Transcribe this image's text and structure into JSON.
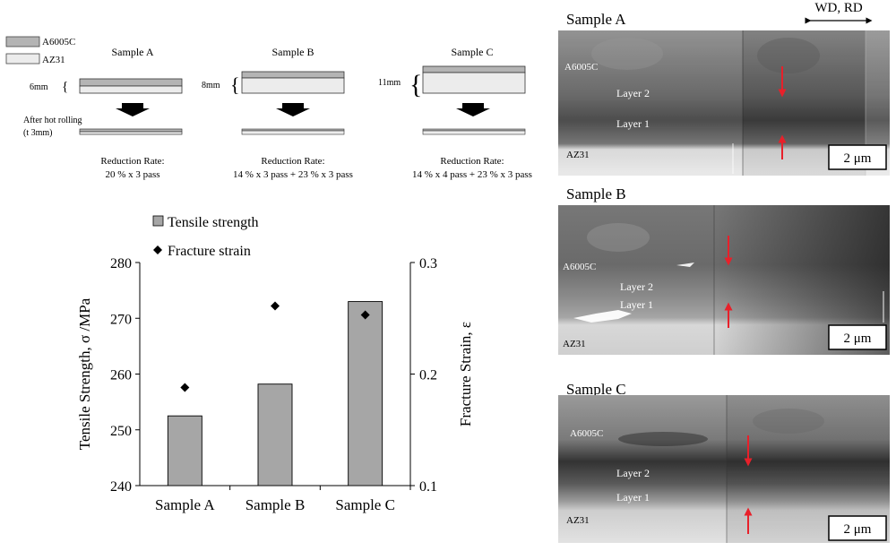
{
  "schematic": {
    "legend": {
      "top_material": "A6005C",
      "bottom_material": "AZ31",
      "top_color": "#b4b4b4",
      "bottom_color": "#ececec"
    },
    "samples": [
      {
        "name": "Sample A",
        "thickness": "6mm",
        "reduction_line1": "Reduction Rate:",
        "reduction_line2": "20 % x 3 pass"
      },
      {
        "name": "Sample B",
        "thickness": "8mm",
        "reduction_line1": "Reduction Rate:",
        "reduction_line2": "14 % x 3 pass + 23 % x 3 pass"
      },
      {
        "name": "Sample C",
        "thickness": "11mm",
        "reduction_line1": "Reduction Rate:",
        "reduction_line2": "14 % x 4 pass + 23 % x 3 pass"
      }
    ],
    "after_label": "After hot rolling",
    "after_thickness": "(t 3mm)"
  },
  "chart_data": {
    "type": "bar",
    "categories": [
      "Sample A",
      "Sample B",
      "Sample C"
    ],
    "series": [
      {
        "name": "Tensile strength",
        "kind": "bar",
        "axis": "left",
        "values": [
          252.5,
          258.2,
          273.0
        ],
        "color": "#a6a6a6"
      },
      {
        "name": "Fracture strain",
        "kind": "scatter",
        "axis": "right",
        "values": [
          0.188,
          0.261,
          0.253
        ],
        "color": "#000000"
      }
    ],
    "ylabel": "Tensile Strength, σ /MPa",
    "y2label": "Fracture Strain, ε",
    "xlabel": "",
    "ylim": [
      240,
      280
    ],
    "y2lim": [
      0.1,
      0.3
    ],
    "yticks": [
      "240",
      "250",
      "260",
      "270",
      "280"
    ],
    "y2ticks": [
      "0.1",
      "0.2",
      "0.3"
    ],
    "legend_position": "top-left",
    "grid": false
  },
  "micrographs": {
    "direction_label": "WD, RD",
    "panels": [
      {
        "title": "Sample A",
        "labels": [
          "A6005C",
          "Layer 2",
          "Layer 1",
          "AZ31"
        ],
        "scale": "2 μm"
      },
      {
        "title": "Sample B",
        "labels": [
          "A6005C",
          "Layer 2",
          "Layer 1",
          "AZ31"
        ],
        "scale": "2 μm"
      },
      {
        "title": "Sample C",
        "labels": [
          "A6005C",
          "Layer 2",
          "Layer 1",
          "AZ31"
        ],
        "scale": "2 μm"
      }
    ],
    "arrow_color": "#e8202a"
  }
}
